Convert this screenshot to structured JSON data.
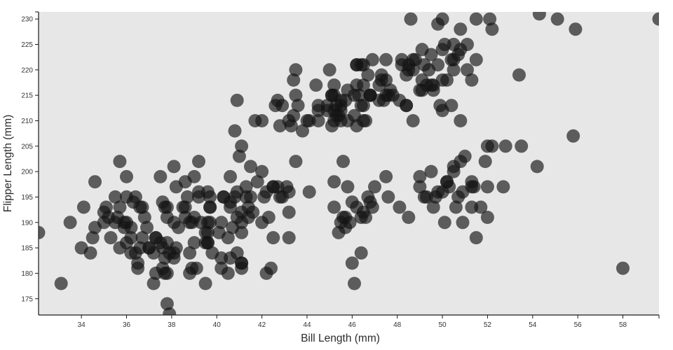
{
  "chart_data": {
    "type": "scatter",
    "title": "",
    "xlabel": "Bill Length (mm)",
    "ylabel": "Flipper Length (mm)",
    "xlim": [
      32.1,
      59.6
    ],
    "ylim": [
      171.8,
      231.4
    ],
    "x_ticks": [
      34,
      36,
      38,
      40,
      42,
      44,
      46,
      48,
      50,
      52,
      54,
      56,
      58
    ],
    "y_ticks": [
      175,
      180,
      185,
      190,
      195,
      200,
      205,
      210,
      215,
      220,
      225,
      230
    ],
    "grid": false,
    "legend_position": "none",
    "plot_bg_color": "#e7e7e7",
    "figure_bg_color": "#ffffff",
    "spine_color": "#1a1a1a",
    "tick_color": "#1a1a1a",
    "marker_color": "#141414",
    "marker_opacity": 0.66,
    "marker_radius": 9.5,
    "points": [
      [
        39.1,
        181
      ],
      [
        39.5,
        186
      ],
      [
        40.3,
        195
      ],
      [
        36.7,
        193
      ],
      [
        39.3,
        190
      ],
      [
        38.9,
        181
      ],
      [
        39.2,
        195
      ],
      [
        34.1,
        193
      ],
      [
        42.0,
        190
      ],
      [
        37.8,
        186
      ],
      [
        37.8,
        180
      ],
      [
        41.1,
        182
      ],
      [
        38.6,
        191
      ],
      [
        34.6,
        198
      ],
      [
        36.6,
        185
      ],
      [
        38.7,
        195
      ],
      [
        42.5,
        197
      ],
      [
        34.4,
        184
      ],
      [
        46.0,
        194
      ],
      [
        37.8,
        174
      ],
      [
        37.7,
        180
      ],
      [
        35.9,
        189
      ],
      [
        38.2,
        185
      ],
      [
        38.8,
        180
      ],
      [
        35.3,
        187
      ],
      [
        40.6,
        183
      ],
      [
        40.5,
        187
      ],
      [
        37.9,
        172
      ],
      [
        40.5,
        180
      ],
      [
        39.5,
        178
      ],
      [
        37.2,
        178
      ],
      [
        39.5,
        188
      ],
      [
        40.9,
        184
      ],
      [
        36.4,
        195
      ],
      [
        39.2,
        196
      ],
      [
        38.8,
        190
      ],
      [
        42.2,
        180
      ],
      [
        37.6,
        181
      ],
      [
        39.8,
        184
      ],
      [
        36.5,
        182
      ],
      [
        40.8,
        195
      ],
      [
        36.0,
        186
      ],
      [
        44.1,
        196
      ],
      [
        37.0,
        185
      ],
      [
        39.6,
        190
      ],
      [
        41.1,
        182
      ],
      [
        37.5,
        186
      ],
      [
        36.0,
        190
      ],
      [
        42.3,
        191
      ],
      [
        39.6,
        186
      ],
      [
        40.1,
        188
      ],
      [
        35.0,
        190
      ],
      [
        42.0,
        200
      ],
      [
        34.5,
        187
      ],
      [
        41.4,
        191
      ],
      [
        39.0,
        186
      ],
      [
        40.6,
        193
      ],
      [
        36.5,
        181
      ],
      [
        37.6,
        194
      ],
      [
        35.7,
        185
      ],
      [
        41.3,
        195
      ],
      [
        37.6,
        185
      ],
      [
        41.1,
        192
      ],
      [
        36.4,
        184
      ],
      [
        41.6,
        192
      ],
      [
        35.5,
        195
      ],
      [
        41.1,
        188
      ],
      [
        35.9,
        190
      ],
      [
        41.8,
        198
      ],
      [
        33.5,
        190
      ],
      [
        39.7,
        190
      ],
      [
        39.6,
        196
      ],
      [
        45.8,
        197
      ],
      [
        35.5,
        190
      ],
      [
        42.8,
        195
      ],
      [
        40.9,
        191
      ],
      [
        37.2,
        184
      ],
      [
        36.2,
        187
      ],
      [
        42.1,
        195
      ],
      [
        34.6,
        189
      ],
      [
        42.9,
        195
      ],
      [
        36.7,
        187
      ],
      [
        35.1,
        193
      ],
      [
        37.3,
        187
      ],
      [
        41.3,
        197
      ],
      [
        36.3,
        194
      ],
      [
        36.9,
        189
      ],
      [
        38.3,
        189
      ],
      [
        38.9,
        190
      ],
      [
        35.7,
        202
      ],
      [
        41.1,
        205
      ],
      [
        34.0,
        185
      ],
      [
        39.6,
        186
      ],
      [
        36.2,
        189
      ],
      [
        40.8,
        208
      ],
      [
        38.1,
        184
      ],
      [
        40.3,
        195
      ],
      [
        33.1,
        178
      ],
      [
        43.2,
        192
      ],
      [
        35.0,
        192
      ],
      [
        41.0,
        203
      ],
      [
        37.7,
        183
      ],
      [
        37.8,
        193
      ],
      [
        37.9,
        184
      ],
      [
        39.7,
        195
      ],
      [
        38.6,
        193
      ],
      [
        38.2,
        197
      ],
      [
        38.1,
        190
      ],
      [
        43.2,
        196
      ],
      [
        38.1,
        183
      ],
      [
        45.6,
        202
      ],
      [
        39.7,
        193
      ],
      [
        42.2,
        196
      ],
      [
        39.6,
        188
      ],
      [
        42.7,
        197
      ],
      [
        38.6,
        198
      ],
      [
        37.3,
        180
      ],
      [
        35.7,
        193
      ],
      [
        41.1,
        181
      ],
      [
        36.2,
        184
      ],
      [
        37.7,
        193
      ],
      [
        40.2,
        181
      ],
      [
        41.4,
        193
      ],
      [
        35.2,
        191
      ],
      [
        40.6,
        194
      ],
      [
        38.8,
        184
      ],
      [
        41.5,
        201
      ],
      [
        39.0,
        191
      ],
      [
        44.1,
        210
      ],
      [
        38.5,
        193
      ],
      [
        43.1,
        197
      ],
      [
        36.8,
        191
      ],
      [
        37.5,
        199
      ],
      [
        38.1,
        201
      ],
      [
        41.1,
        190
      ],
      [
        35.6,
        191
      ],
      [
        40.2,
        190
      ],
      [
        37.0,
        185
      ],
      [
        39.7,
        193
      ],
      [
        40.2,
        183
      ],
      [
        40.6,
        199
      ],
      [
        32.1,
        188
      ],
      [
        40.7,
        189
      ],
      [
        37.3,
        187
      ],
      [
        39.0,
        199
      ],
      [
        39.2,
        202
      ],
      [
        36.6,
        193
      ],
      [
        36.0,
        195
      ],
      [
        37.8,
        191
      ],
      [
        36.0,
        199
      ],
      [
        41.5,
        195
      ],
      [
        46.5,
        192
      ],
      [
        50.0,
        196
      ],
      [
        51.3,
        193
      ],
      [
        45.4,
        188
      ],
      [
        52.7,
        197
      ],
      [
        45.2,
        198
      ],
      [
        46.1,
        178
      ],
      [
        51.3,
        197
      ],
      [
        46.0,
        182
      ],
      [
        51.3,
        198
      ],
      [
        46.6,
        191
      ],
      [
        51.7,
        193
      ],
      [
        47.0,
        197
      ],
      [
        52.0,
        191
      ],
      [
        45.9,
        190
      ],
      [
        50.5,
        200
      ],
      [
        50.3,
        197
      ],
      [
        58.0,
        181
      ],
      [
        46.4,
        184
      ],
      [
        49.2,
        195
      ],
      [
        42.4,
        181
      ],
      [
        48.5,
        191
      ],
      [
        43.2,
        187
      ],
      [
        50.6,
        193
      ],
      [
        46.7,
        195
      ],
      [
        52.0,
        197
      ],
      [
        50.5,
        201
      ],
      [
        49.5,
        200
      ],
      [
        46.4,
        191
      ],
      [
        52.8,
        205
      ],
      [
        40.9,
        196
      ],
      [
        54.2,
        201
      ],
      [
        42.5,
        187
      ],
      [
        51.0,
        203
      ],
      [
        49.7,
        195
      ],
      [
        47.5,
        199
      ],
      [
        47.6,
        195
      ],
      [
        52.0,
        205
      ],
      [
        46.9,
        193
      ],
      [
        53.5,
        205
      ],
      [
        49.0,
        197
      ],
      [
        46.2,
        193
      ],
      [
        50.9,
        196
      ],
      [
        45.5,
        190
      ],
      [
        50.9,
        190
      ],
      [
        50.8,
        202
      ],
      [
        50.1,
        190
      ],
      [
        49.0,
        199
      ],
      [
        51.5,
        187
      ],
      [
        49.8,
        196
      ],
      [
        48.1,
        193
      ],
      [
        51.4,
        197
      ],
      [
        45.7,
        189
      ],
      [
        50.7,
        195
      ],
      [
        42.5,
        197
      ],
      [
        52.2,
        205
      ],
      [
        45.2,
        193
      ],
      [
        49.3,
        195
      ],
      [
        50.2,
        198
      ],
      [
        45.6,
        191
      ],
      [
        51.9,
        202
      ],
      [
        46.8,
        194
      ],
      [
        45.7,
        191
      ],
      [
        55.8,
        207
      ],
      [
        43.5,
        202
      ],
      [
        49.6,
        193
      ],
      [
        50.8,
        210
      ],
      [
        50.2,
        198
      ],
      [
        46.1,
        211
      ],
      [
        50.0,
        230
      ],
      [
        48.7,
        210
      ],
      [
        50.0,
        218
      ],
      [
        47.6,
        215
      ],
      [
        46.5,
        210
      ],
      [
        45.4,
        211
      ],
      [
        46.7,
        219
      ],
      [
        43.3,
        209
      ],
      [
        46.8,
        215
      ],
      [
        40.9,
        214
      ],
      [
        49.0,
        216
      ],
      [
        45.5,
        214
      ],
      [
        48.4,
        213
      ],
      [
        45.8,
        210
      ],
      [
        49.3,
        217
      ],
      [
        42.0,
        210
      ],
      [
        49.2,
        221
      ],
      [
        46.2,
        209
      ],
      [
        48.7,
        222
      ],
      [
        50.2,
        218
      ],
      [
        45.1,
        215
      ],
      [
        46.5,
        213
      ],
      [
        46.3,
        215
      ],
      [
        42.9,
        213
      ],
      [
        46.1,
        215
      ],
      [
        44.5,
        213
      ],
      [
        47.8,
        215
      ],
      [
        48.2,
        222
      ],
      [
        50.0,
        212
      ],
      [
        47.3,
        218
      ],
      [
        43.4,
        218
      ],
      [
        45.1,
        215
      ],
      [
        59.6,
        230
      ],
      [
        49.1,
        216
      ],
      [
        48.4,
        213
      ],
      [
        42.6,
        213
      ],
      [
        44.4,
        217
      ],
      [
        44.0,
        210
      ],
      [
        48.7,
        220
      ],
      [
        42.7,
        214
      ],
      [
        49.6,
        216
      ],
      [
        45.3,
        213
      ],
      [
        49.6,
        217
      ],
      [
        50.5,
        220
      ],
      [
        43.6,
        213
      ],
      [
        45.5,
        210
      ],
      [
        50.5,
        225
      ],
      [
        44.9,
        213
      ],
      [
        45.2,
        217
      ],
      [
        46.6,
        210
      ],
      [
        48.5,
        221
      ],
      [
        45.1,
        209
      ],
      [
        50.1,
        225
      ],
      [
        46.5,
        217
      ],
      [
        45.0,
        220
      ],
      [
        43.8,
        208
      ],
      [
        45.5,
        212
      ],
      [
        43.2,
        210
      ],
      [
        50.4,
        213
      ],
      [
        45.3,
        211
      ],
      [
        46.2,
        217
      ],
      [
        45.7,
        214
      ],
      [
        54.3,
        231
      ],
      [
        45.8,
        216
      ],
      [
        49.8,
        221
      ],
      [
        46.2,
        221
      ],
      [
        49.5,
        217
      ],
      [
        43.5,
        220
      ],
      [
        50.7,
        223
      ],
      [
        47.7,
        216
      ],
      [
        46.4,
        221
      ],
      [
        48.2,
        221
      ],
      [
        46.5,
        221
      ],
      [
        46.4,
        213
      ],
      [
        48.6,
        230
      ],
      [
        47.5,
        222
      ],
      [
        51.1,
        220
      ],
      [
        45.2,
        215
      ],
      [
        45.2,
        210
      ],
      [
        49.1,
        224
      ],
      [
        51.5,
        230
      ],
      [
        47.4,
        214
      ],
      [
        50.0,
        224
      ],
      [
        44.9,
        212
      ],
      [
        50.8,
        228
      ],
      [
        43.4,
        211
      ],
      [
        51.3,
        218
      ],
      [
        47.5,
        218
      ],
      [
        52.1,
        230
      ],
      [
        47.5,
        215
      ],
      [
        52.2,
        228
      ],
      [
        45.5,
        213
      ],
      [
        49.5,
        223
      ],
      [
        44.5,
        212
      ],
      [
        50.8,
        224
      ],
      [
        49.4,
        220
      ],
      [
        46.9,
        222
      ],
      [
        48.4,
        219
      ],
      [
        51.1,
        225
      ],
      [
        48.5,
        220
      ],
      [
        55.9,
        228
      ],
      [
        47.2,
        217
      ],
      [
        49.1,
        218
      ],
      [
        47.3,
        219
      ],
      [
        46.8,
        215
      ],
      [
        41.7,
        210
      ],
      [
        53.4,
        219
      ],
      [
        42.8,
        209
      ],
      [
        48.1,
        214
      ],
      [
        50.5,
        222
      ],
      [
        49.8,
        229
      ],
      [
        43.5,
        215
      ],
      [
        51.5,
        222
      ],
      [
        46.2,
        221
      ],
      [
        55.1,
        230
      ],
      [
        44.5,
        210
      ],
      [
        48.8,
        222
      ],
      [
        47.2,
        214
      ],
      [
        46.8,
        215
      ],
      [
        50.4,
        222
      ],
      [
        45.2,
        212
      ],
      [
        49.9,
        213
      ]
    ]
  }
}
